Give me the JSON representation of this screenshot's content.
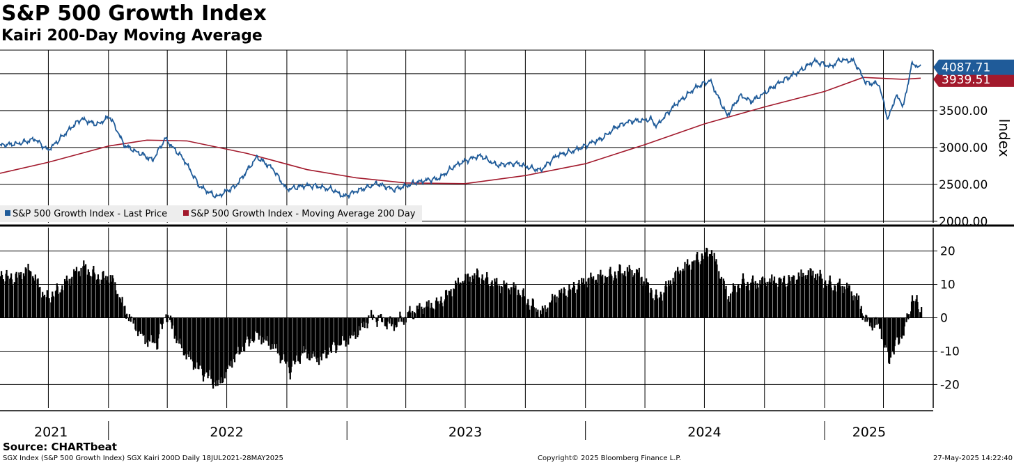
{
  "chart_data": [
    {
      "type": "line",
      "title": "S&P 500 Growth Index",
      "subtitle": "Kairi 200-Day Moving Average",
      "ylabel": "Index",
      "ylim": [
        1980,
        4320
      ],
      "yticks": [
        2000,
        2500,
        3000,
        3500
      ],
      "ytick_labels": [
        "2000.00",
        "2500.00",
        "3000.00",
        "3500.00"
      ],
      "grid": true,
      "legend_position": "bottom-left",
      "series": [
        {
          "name": "S&P 500 Growth Index - Last Price",
          "color": "#1f5b99",
          "last_value_label": "4087.71",
          "points": [
            [
              "2021-07-19",
              3020
            ],
            [
              "2021-08-15",
              3060
            ],
            [
              "2021-09-10",
              3110
            ],
            [
              "2021-09-30",
              2960
            ],
            [
              "2021-10-25",
              3180
            ],
            [
              "2021-11-20",
              3380
            ],
            [
              "2021-12-15",
              3320
            ],
            [
              "2022-01-03",
              3420
            ],
            [
              "2022-01-25",
              3030
            ],
            [
              "2022-02-20",
              2920
            ],
            [
              "2022-03-10",
              2820
            ],
            [
              "2022-03-29",
              3120
            ],
            [
              "2022-04-25",
              2860
            ],
            [
              "2022-05-20",
              2470
            ],
            [
              "2022-06-16",
              2340
            ],
            [
              "2022-07-15",
              2470
            ],
            [
              "2022-08-16",
              2880
            ],
            [
              "2022-09-10",
              2700
            ],
            [
              "2022-09-30",
              2440
            ],
            [
              "2022-10-25",
              2480
            ],
            [
              "2022-11-15",
              2470
            ],
            [
              "2022-12-10",
              2440
            ],
            [
              "2022-12-28",
              2330
            ],
            [
              "2023-01-25",
              2440
            ],
            [
              "2023-02-15",
              2520
            ],
            [
              "2023-03-13",
              2420
            ],
            [
              "2023-04-15",
              2530
            ],
            [
              "2023-05-20",
              2570
            ],
            [
              "2023-06-15",
              2760
            ],
            [
              "2023-07-25",
              2890
            ],
            [
              "2023-08-20",
              2760
            ],
            [
              "2023-09-20",
              2780
            ],
            [
              "2023-10-25",
              2690
            ],
            [
              "2023-11-20",
              2900
            ],
            [
              "2023-12-28",
              3000
            ],
            [
              "2024-01-25",
              3120
            ],
            [
              "2024-02-15",
              3270
            ],
            [
              "2024-03-10",
              3350
            ],
            [
              "2024-04-10",
              3390
            ],
            [
              "2024-04-19",
              3290
            ],
            [
              "2024-05-20",
              3600
            ],
            [
              "2024-06-15",
              3800
            ],
            [
              "2024-07-10",
              3900
            ],
            [
              "2024-08-05",
              3440
            ],
            [
              "2024-08-25",
              3700
            ],
            [
              "2024-09-10",
              3620
            ],
            [
              "2024-10-10",
              3800
            ],
            [
              "2024-11-10",
              3960
            ],
            [
              "2024-12-15",
              4170
            ],
            [
              "2025-01-10",
              4090
            ],
            [
              "2025-01-25",
              4200
            ],
            [
              "2025-02-15",
              4170
            ],
            [
              "2025-03-05",
              3870
            ],
            [
              "2025-03-25",
              3870
            ],
            [
              "2025-04-08",
              3380
            ],
            [
              "2025-04-20",
              3700
            ],
            [
              "2025-05-02",
              3560
            ],
            [
              "2025-05-14",
              4120
            ],
            [
              "2025-05-20",
              4130
            ],
            [
              "2025-05-28",
              4088
            ]
          ]
        },
        {
          "name": "S&P 500 Growth Index - Moving Average 200 Day",
          "color": "#a2192c",
          "last_value_label": "3939.51",
          "points": [
            [
              "2021-07-19",
              2650
            ],
            [
              "2021-10-01",
              2800
            ],
            [
              "2022-01-01",
              3020
            ],
            [
              "2022-03-01",
              3100
            ],
            [
              "2022-05-01",
              3090
            ],
            [
              "2022-08-01",
              2920
            ],
            [
              "2022-11-01",
              2700
            ],
            [
              "2023-01-15",
              2590
            ],
            [
              "2023-04-01",
              2520
            ],
            [
              "2023-07-01",
              2510
            ],
            [
              "2023-10-01",
              2620
            ],
            [
              "2024-01-01",
              2780
            ],
            [
              "2024-04-01",
              3040
            ],
            [
              "2024-07-01",
              3320
            ],
            [
              "2024-10-01",
              3550
            ],
            [
              "2025-01-01",
              3760
            ],
            [
              "2025-03-01",
              3950
            ],
            [
              "2025-05-01",
              3925
            ],
            [
              "2025-05-28",
              3940
            ]
          ]
        }
      ]
    },
    {
      "type": "bar",
      "title": "SGX Kairi 200D",
      "ylim": [
        -27,
        27
      ],
      "yticks": [
        -20,
        -10,
        0,
        10,
        20
      ],
      "ytick_labels": [
        "-20",
        "-10",
        "0",
        "10",
        "20"
      ],
      "grid": true,
      "color": "#000000",
      "series": [
        {
          "name": "Kairi 200D",
          "points": [
            [
              "2021-07-19",
              13
            ],
            [
              "2021-08-10",
              12
            ],
            [
              "2021-09-01",
              14
            ],
            [
              "2021-09-25",
              6
            ],
            [
              "2021-10-20",
              9
            ],
            [
              "2021-11-22",
              15
            ],
            [
              "2021-12-20",
              12
            ],
            [
              "2022-01-03",
              12
            ],
            [
              "2022-01-25",
              2
            ],
            [
              "2022-02-25",
              -6
            ],
            [
              "2022-03-15",
              -8
            ],
            [
              "2022-03-29",
              1
            ],
            [
              "2022-04-20",
              -8
            ],
            [
              "2022-05-20",
              -16
            ],
            [
              "2022-06-16",
              -20
            ],
            [
              "2022-07-10",
              -12
            ],
            [
              "2022-08-16",
              -5
            ],
            [
              "2022-09-10",
              -8
            ],
            [
              "2022-10-05",
              -16
            ],
            [
              "2022-10-25",
              -10
            ],
            [
              "2022-11-20",
              -12
            ],
            [
              "2022-12-20",
              -8
            ],
            [
              "2023-01-15",
              -4
            ],
            [
              "2023-02-05",
              0
            ],
            [
              "2023-03-10",
              -2
            ],
            [
              "2023-04-05",
              1
            ],
            [
              "2023-05-15",
              4
            ],
            [
              "2023-06-20",
              10
            ],
            [
              "2023-07-20",
              13
            ],
            [
              "2023-08-25",
              9
            ],
            [
              "2023-09-20",
              8
            ],
            [
              "2023-10-25",
              1
            ],
            [
              "2023-11-20",
              7
            ],
            [
              "2023-12-20",
              10
            ],
            [
              "2024-01-25",
              12
            ],
            [
              "2024-02-20",
              14
            ],
            [
              "2024-03-20",
              13
            ],
            [
              "2024-04-19",
              6
            ],
            [
              "2024-05-20",
              13
            ],
            [
              "2024-06-20",
              18
            ],
            [
              "2024-07-10",
              20
            ],
            [
              "2024-08-05",
              6
            ],
            [
              "2024-08-25",
              11
            ],
            [
              "2024-09-20",
              10
            ],
            [
              "2024-10-20",
              11
            ],
            [
              "2024-11-20",
              12
            ],
            [
              "2024-12-15",
              13
            ],
            [
              "2025-01-10",
              10
            ],
            [
              "2025-02-01",
              9
            ],
            [
              "2025-02-20",
              5
            ],
            [
              "2025-03-05",
              -1
            ],
            [
              "2025-03-25",
              -2
            ],
            [
              "2025-04-08",
              -13
            ],
            [
              "2025-04-20",
              -8
            ],
            [
              "2025-05-02",
              -4
            ],
            [
              "2025-05-14",
              6
            ],
            [
              "2025-05-20",
              5
            ],
            [
              "2025-05-28",
              3
            ]
          ]
        }
      ]
    }
  ],
  "x_axis": {
    "range": [
      "2021-07-19",
      "2025-05-28"
    ],
    "year_labels": [
      {
        "label": "2021",
        "date": "2021-10-05"
      },
      {
        "label": "2022",
        "date": "2022-07-01"
      },
      {
        "label": "2023",
        "date": "2023-07-01"
      },
      {
        "label": "2024",
        "date": "2024-07-01"
      },
      {
        "label": "2025",
        "date": "2025-03-10"
      }
    ]
  },
  "legend": {
    "item1": "S&P 500 Growth Index - Last Price",
    "item2": "S&P 500 Growth Index - Moving Average 200 Day"
  },
  "labels": {
    "title": "S&P 500 Growth Index",
    "subtitle": "Kairi 200-Day Moving Average",
    "source": "Source: CHARTbeat",
    "footer_left": "SGX Index (S&P 500 Growth Index) SGX Kairi 200D  Daily 18JUL2021-28MAY2025",
    "footer_mid": "Copyright© 2025 Bloomberg Finance L.P.",
    "footer_right": "27-May-2025 14:22:40"
  },
  "colors": {
    "price": "#1f5b99",
    "moving_average": "#a2192c",
    "bars": "#000000",
    "grid": "#000000"
  }
}
